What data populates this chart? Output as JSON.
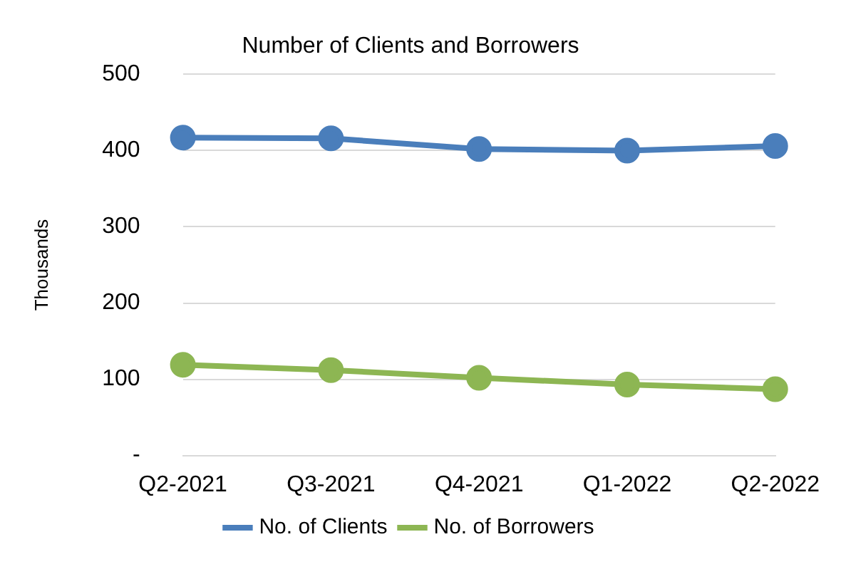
{
  "chart_data": {
    "type": "line",
    "title": "Number of Clients and Borrowers",
    "ylabel": "Thousands",
    "categories": [
      "Q2-2021",
      "Q3-2021",
      "Q4-2021",
      "Q1-2022",
      "Q2-2022"
    ],
    "series": [
      {
        "name": "No. of Clients",
        "color": "#4a7ebb",
        "values": [
          417,
          416,
          402,
          400,
          406
        ]
      },
      {
        "name": "No. of Borrowers",
        "color": "#8db653",
        "values": [
          119,
          112,
          102,
          93,
          87
        ]
      }
    ],
    "ylim": [
      0,
      500
    ],
    "yticks": [
      {
        "value": 0,
        "label": "-"
      },
      100,
      200,
      300,
      400,
      500
    ],
    "grid": "y",
    "legend": "bottom",
    "marker": "circle",
    "line_style": "solid"
  }
}
